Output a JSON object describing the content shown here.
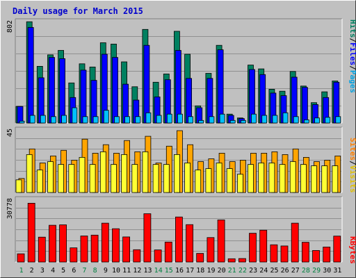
{
  "title": "Daily usage for March 2015",
  "colors": {
    "background": "#c0c0c0",
    "title": "#0000cc",
    "hits": "#008060",
    "files": "#0000ff",
    "pages": "#00c0ff",
    "visits": "#ffa500",
    "sites": "#ffff33",
    "kbytes": "#ff0000",
    "weekday_label": "#000000",
    "weekend_label": "#008040"
  },
  "chart_data": [
    {
      "type": "bar",
      "panel": "requests",
      "axis_max_label": "802",
      "ylim": [
        0,
        802
      ],
      "grid": true,
      "legend": [
        "Hits",
        "/",
        "Files",
        "/",
        "Pages"
      ],
      "categories": [
        "1",
        "2",
        "3",
        "4",
        "5",
        "6",
        "7",
        "8",
        "9",
        "10",
        "11",
        "12",
        "13",
        "14",
        "15",
        "16",
        "17",
        "18",
        "19",
        "20",
        "21",
        "22",
        "23",
        "24",
        "25",
        "26",
        "27",
        "28",
        "29",
        "30",
        "31"
      ],
      "weekend_days": [
        "1",
        "7",
        "8",
        "14",
        "15",
        "21",
        "22",
        "28",
        "29"
      ],
      "series": [
        {
          "name": "Hits",
          "values": [
            130,
            795,
            445,
            535,
            570,
            315,
            465,
            440,
            630,
            620,
            480,
            285,
            735,
            320,
            385,
            720,
            540,
            135,
            390,
            610,
            70,
            40,
            455,
            425,
            265,
            250,
            405,
            290,
            160,
            245,
            330
          ]
        },
        {
          "name": "Files",
          "values": [
            130,
            750,
            355,
            515,
            505,
            200,
            415,
            335,
            540,
            515,
            305,
            180,
            610,
            205,
            340,
            570,
            350,
            120,
            350,
            575,
            60,
            35,
            420,
            380,
            235,
            215,
            360,
            280,
            145,
            200,
            320
          ]
        },
        {
          "name": "Pages",
          "values": [
            15,
            60,
            60,
            50,
            60,
            120,
            50,
            50,
            100,
            50,
            50,
            50,
            80,
            60,
            70,
            70,
            50,
            20,
            50,
            70,
            20,
            20,
            70,
            60,
            60,
            80,
            50,
            25,
            40,
            45,
            50
          ]
        }
      ]
    },
    {
      "type": "bar",
      "panel": "visitors",
      "axis_max_label": "45",
      "ylim": [
        0,
        45
      ],
      "grid": true,
      "legend": [
        "Sites",
        "/",
        "Visits"
      ],
      "series": [
        {
          "name": "Visits",
          "values": [
            10,
            31,
            21,
            26,
            30,
            23,
            38,
            28,
            34,
            28,
            37,
            29,
            40,
            21,
            33,
            44,
            34,
            22,
            24,
            28,
            22,
            23,
            28,
            28,
            29,
            27,
            31,
            25,
            22,
            23,
            26
          ]
        },
        {
          "name": "Sites",
          "values": [
            9,
            27,
            16,
            22,
            20,
            20,
            25,
            20,
            29,
            20,
            27,
            20,
            29,
            20,
            20,
            27,
            21,
            16,
            17,
            21,
            17,
            13,
            20,
            21,
            21,
            20,
            22,
            20,
            19,
            19,
            19
          ]
        }
      ]
    },
    {
      "type": "bar",
      "panel": "transfer",
      "axis_max_label": "30778",
      "ylim": [
        0,
        30778
      ],
      "grid": true,
      "legend": [
        "KBytes"
      ],
      "series": [
        {
          "name": "KBytes",
          "values": [
            4000,
            28600,
            12100,
            17900,
            18100,
            6900,
            12700,
            13100,
            18900,
            16200,
            12200,
            6000,
            23500,
            5900,
            9700,
            21900,
            18200,
            4200,
            11900,
            20500,
            1600,
            1700,
            14000,
            15500,
            8400,
            7800,
            18900,
            9600,
            5600,
            7300,
            12600
          ]
        }
      ]
    }
  ]
}
